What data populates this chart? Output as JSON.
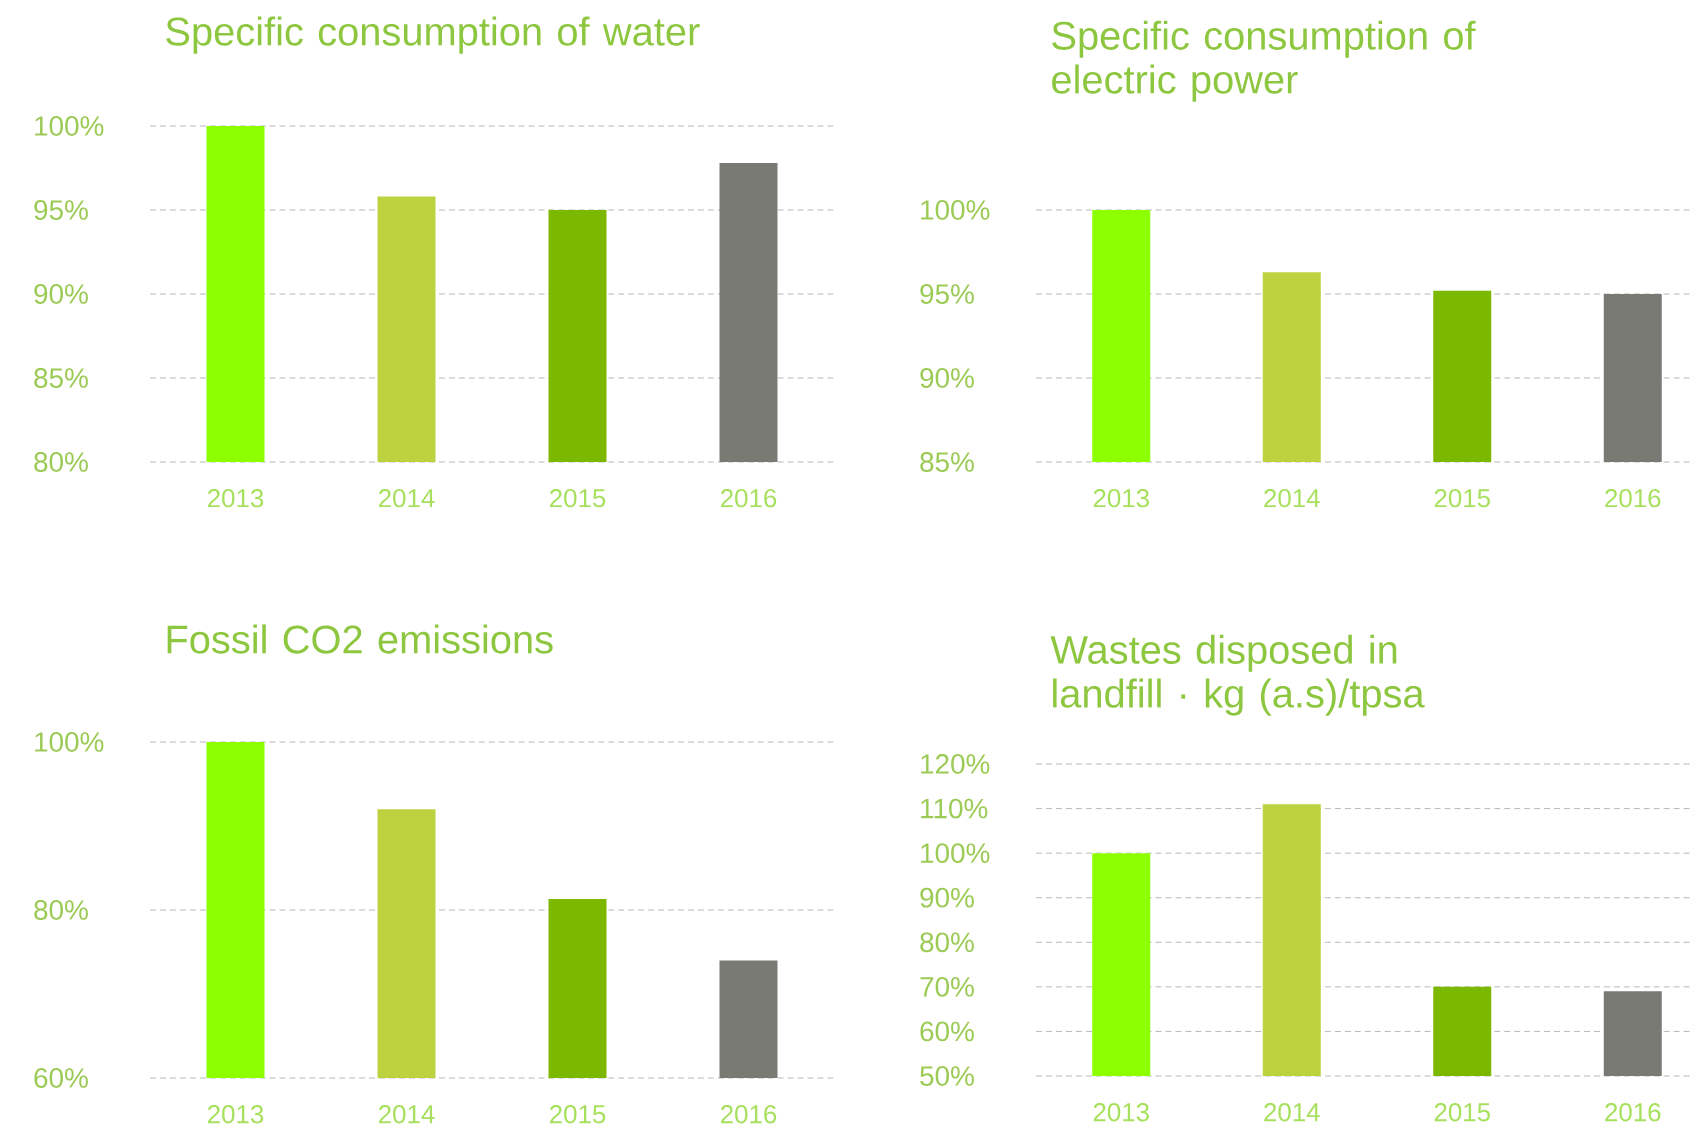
{
  "chart_data": [
    {
      "type": "bar",
      "title": "Specific consumption of water",
      "categories": [
        "2013",
        "2014",
        "2015",
        "2016"
      ],
      "values": [
        100,
        95.8,
        95.0,
        97.8
      ],
      "colors": [
        "#8cff00",
        "#bcd23f",
        "#7db800",
        "#7a7a75"
      ],
      "ylim": [
        80,
        100
      ],
      "yticks": [
        {
          "value": 80,
          "label": "80%"
        },
        {
          "value": 85,
          "label": "85%"
        },
        {
          "value": 90,
          "label": "90%"
        },
        {
          "value": 95,
          "label": "95%"
        },
        {
          "value": 100,
          "label": "100%"
        }
      ],
      "grid": "y"
    },
    {
      "type": "bar",
      "title": "Specific consumption of electric power",
      "categories": [
        "2013",
        "2014",
        "2015",
        "2016"
      ],
      "values": [
        100,
        96.3,
        95.2,
        95.0
      ],
      "colors": [
        "#8cff00",
        "#bcd23f",
        "#7db800",
        "#7a7a75"
      ],
      "ylim": [
        85,
        100
      ],
      "yticks": [
        {
          "value": 85,
          "label": "85%"
        },
        {
          "value": 90,
          "label": "90%"
        },
        {
          "value": 95,
          "label": "95%"
        },
        {
          "value": 100,
          "label": "100%"
        }
      ],
      "grid": "y"
    },
    {
      "type": "bar",
      "title": "Fossil CO2 emissions",
      "categories": [
        "2013",
        "2014",
        "2015",
        "2016"
      ],
      "values": [
        100,
        92,
        81.3,
        74
      ],
      "colors": [
        "#8cff00",
        "#bcd23f",
        "#7db800",
        "#7a7a75"
      ],
      "ylim": [
        60,
        100
      ],
      "yticks": [
        {
          "value": 60,
          "label": "60%"
        },
        {
          "value": 80,
          "label": "80%"
        },
        {
          "value": 100,
          "label": "100%"
        }
      ],
      "grid": "y"
    },
    {
      "type": "bar",
      "title": "Wastes disposed in landfill · kg (a.s)/tpsa",
      "categories": [
        "2013",
        "2014",
        "2015",
        "2016"
      ],
      "values": [
        100,
        111,
        70,
        69
      ],
      "colors": [
        "#8cff00",
        "#bcd23f",
        "#7db800",
        "#7a7a75"
      ],
      "ylim": [
        50,
        120
      ],
      "yticks": [
        {
          "value": 50,
          "label": "50%"
        },
        {
          "value": 60,
          "label": "60%"
        },
        {
          "value": 70,
          "label": "70%"
        },
        {
          "value": 80,
          "label": "80%"
        },
        {
          "value": 90,
          "label": "90%"
        },
        {
          "value": 100,
          "label": "100%"
        },
        {
          "value": 110,
          "label": "110%"
        },
        {
          "value": 120,
          "label": "120%"
        }
      ],
      "grid": "y"
    }
  ]
}
